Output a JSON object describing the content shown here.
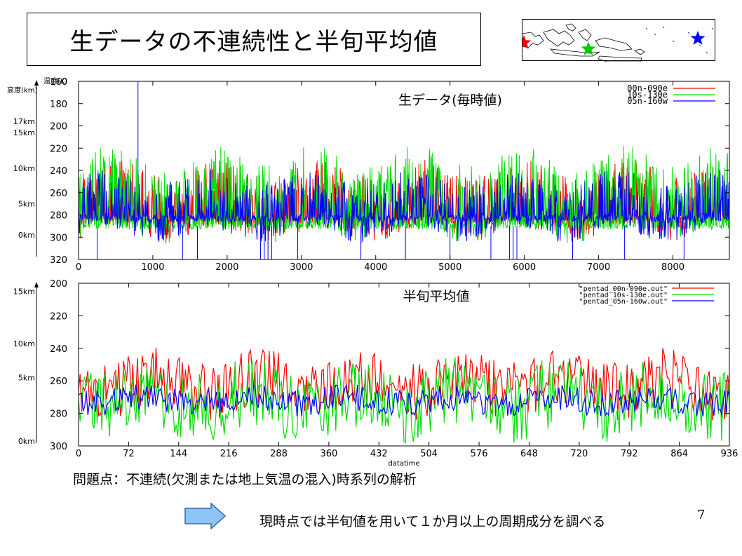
{
  "slide": {
    "title": "生データの不連続性と半旬平均値",
    "note_problem": "問題点：不連続(欠測または地上気温の混入)時系列の解析",
    "note_plan": "現時点では半旬値を用いて１か月以上の周期成分を調べる",
    "page_number": "7"
  },
  "map": {
    "markers": [
      {
        "name": "00n-090e",
        "color": "#ff0000"
      },
      {
        "name": "10s-130e",
        "color": "#00cc00"
      },
      {
        "name": "05n-160w",
        "color": "#0000ff"
      }
    ]
  },
  "chart_data": [
    {
      "type": "line",
      "title": "生データ(毎時値)",
      "xlabel": "",
      "ylabel_temp": "温度(K)",
      "ylabel_alt": "高度(km)",
      "xlim": [
        0,
        8760
      ],
      "ylim": [
        320,
        160
      ],
      "y_inverted": true,
      "x_ticks": [
        "0",
        "1000",
        "2000",
        "3000",
        "4000",
        "5000",
        "6000",
        "7000",
        "8000"
      ],
      "y_ticks": [
        "160",
        "180",
        "200",
        "220",
        "240",
        "260",
        "280",
        "300",
        "320"
      ],
      "altitude_labels": [
        {
          "label": "17km",
          "temp": 196
        },
        {
          "label": "15km",
          "temp": 206
        },
        {
          "label": "10km",
          "temp": 238
        },
        {
          "label": "5km",
          "temp": 270
        },
        {
          "label": "0km",
          "temp": 298
        }
      ],
      "series": [
        {
          "name": "00n-090e",
          "color": "#ff0000",
          "mean": 268,
          "spread": 30,
          "floor": 288
        },
        {
          "name": "10s-130e",
          "color": "#00dd00",
          "mean": 262,
          "spread": 36,
          "floor": 293
        },
        {
          "name": "05n-160w",
          "color": "#0000ff",
          "mean": 272,
          "spread": 26,
          "floor": 286
        }
      ],
      "grid": false,
      "legend": "top-right"
    },
    {
      "type": "line",
      "title": "半旬平均値",
      "xlabel": "datatime",
      "xlim": [
        0,
        936
      ],
      "ylim": [
        300,
        200
      ],
      "y_inverted": true,
      "x_ticks": [
        "0",
        "72",
        "144",
        "216",
        "288",
        "360",
        "432",
        "504",
        "576",
        "648",
        "720",
        "792",
        "864",
        "936"
      ],
      "y_ticks": [
        "200",
        "220",
        "240",
        "260",
        "280",
        "300"
      ],
      "altitude_labels": [
        {
          "label": "15km",
          "temp": 205
        },
        {
          "label": "10km",
          "temp": 237
        },
        {
          "label": "5km",
          "temp": 258
        },
        {
          "label": "0km",
          "temp": 297
        }
      ],
      "series": [
        {
          "name": "\"pentad_00n-090e.out\"",
          "color": "#ff0000",
          "mean": 262,
          "spread": 18
        },
        {
          "name": "\"pentad_10s-130e.out\"",
          "color": "#00dd00",
          "mean": 272,
          "spread": 22
        },
        {
          "name": "\"pentad_05n-160w.out\"",
          "color": "#0000ff",
          "mean": 272,
          "spread": 8
        }
      ],
      "grid": false,
      "legend": "top-right"
    }
  ]
}
